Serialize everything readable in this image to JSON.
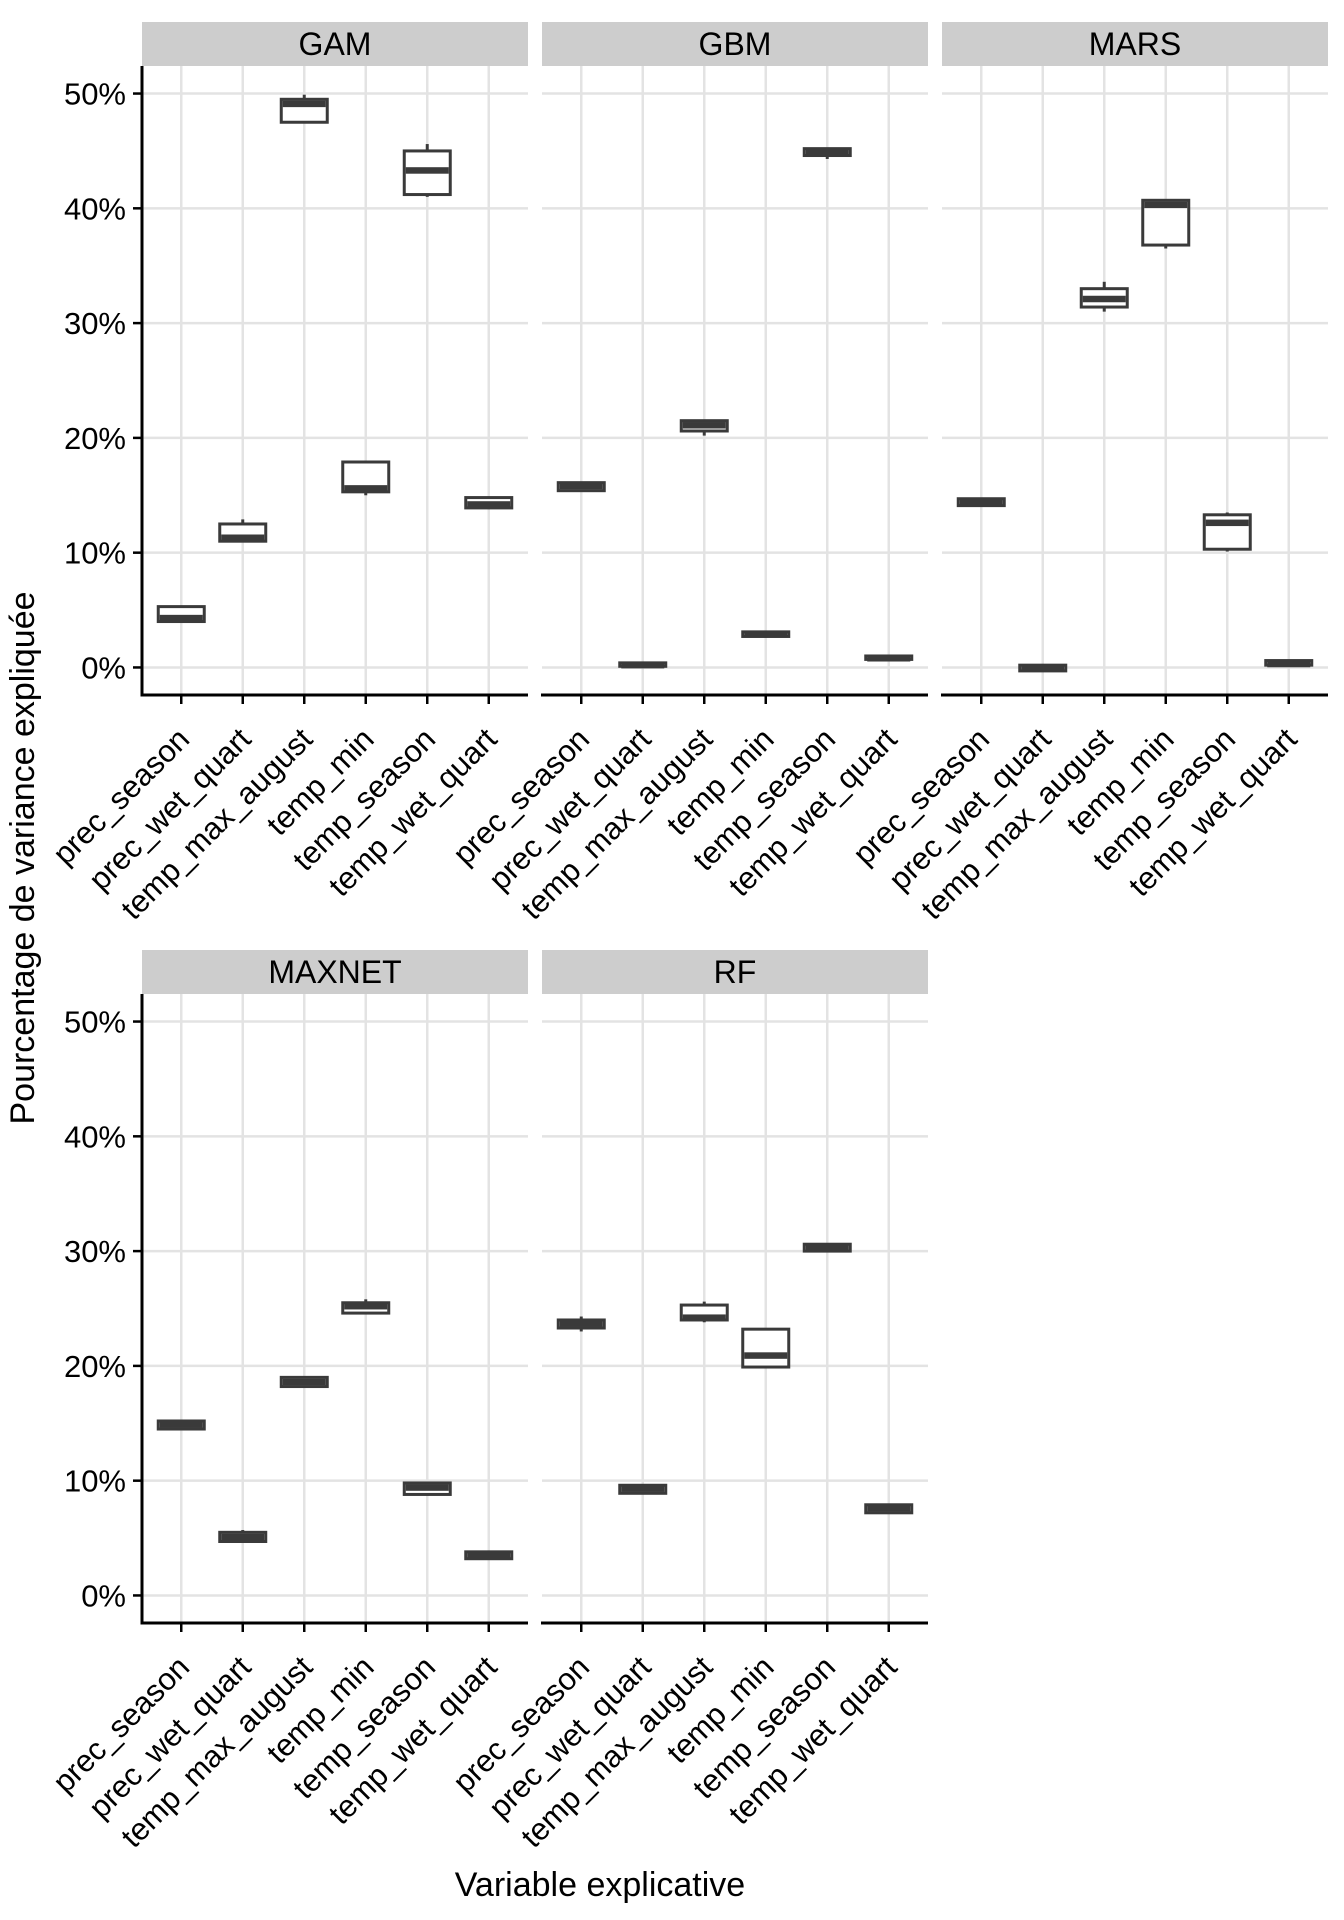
{
  "chart_data": {
    "type": "boxplot",
    "title": "",
    "xlabel": "Variable explicative",
    "ylabel": "Pourcentage de variance expliquée",
    "categories": [
      "prec_season",
      "prec_wet_quart",
      "temp_max_august",
      "temp_min",
      "temp_season",
      "temp_wet_quart"
    ],
    "ytick_labels": [
      "0%",
      "10%",
      "20%",
      "30%",
      "40%",
      "50%"
    ],
    "ytick_values": [
      0,
      10,
      20,
      30,
      40,
      50
    ],
    "ylim": [
      -2.4,
      52.4
    ],
    "grid": true,
    "legend_position": "none",
    "facets": [
      {
        "label": "GAM",
        "row": 0,
        "col": 0,
        "boxes": [
          {
            "category": "prec_season",
            "whisker_low": 3.9,
            "q1": 4.0,
            "median": 4.3,
            "q3": 5.3,
            "whisker_high": 5.4
          },
          {
            "category": "prec_wet_quart",
            "whisker_low": 10.9,
            "q1": 11.0,
            "median": 11.3,
            "q3": 12.5,
            "whisker_high": 12.9
          },
          {
            "category": "temp_max_august",
            "whisker_low": 47.4,
            "q1": 47.5,
            "median": 49.1,
            "q3": 49.5,
            "whisker_high": 49.9
          },
          {
            "category": "temp_min",
            "whisker_low": 15.0,
            "q1": 15.3,
            "median": 15.6,
            "q3": 17.9,
            "whisker_high": 18.0
          },
          {
            "category": "temp_season",
            "whisker_low": 41.0,
            "q1": 41.2,
            "median": 43.3,
            "q3": 45.0,
            "whisker_high": 45.6
          },
          {
            "category": "temp_wet_quart",
            "whisker_low": 13.8,
            "q1": 13.9,
            "median": 14.2,
            "q3": 14.8,
            "whisker_high": 14.9
          }
        ]
      },
      {
        "label": "GBM",
        "row": 0,
        "col": 1,
        "boxes": [
          {
            "category": "prec_season",
            "whisker_low": 15.3,
            "q1": 15.4,
            "median": 15.8,
            "q3": 16.1,
            "whisker_high": 16.2
          },
          {
            "category": "prec_wet_quart",
            "whisker_low": 0.0,
            "q1": 0.1,
            "median": 0.2,
            "q3": 0.4,
            "whisker_high": 0.4
          },
          {
            "category": "temp_max_august",
            "whisker_low": 20.2,
            "q1": 20.6,
            "median": 21.1,
            "q3": 21.5,
            "whisker_high": 21.6
          },
          {
            "category": "temp_min",
            "whisker_low": 2.6,
            "q1": 2.7,
            "median": 2.9,
            "q3": 3.1,
            "whisker_high": 3.2
          },
          {
            "category": "temp_season",
            "whisker_low": 44.3,
            "q1": 44.6,
            "median": 44.9,
            "q3": 45.2,
            "whisker_high": 45.3
          },
          {
            "category": "temp_wet_quart",
            "whisker_low": 0.6,
            "q1": 0.7,
            "median": 0.8,
            "q3": 1.0,
            "whisker_high": 1.0
          }
        ]
      },
      {
        "label": "MARS",
        "row": 0,
        "col": 2,
        "boxes": [
          {
            "category": "prec_season",
            "whisker_low": 14.0,
            "q1": 14.1,
            "median": 14.4,
            "q3": 14.7,
            "whisker_high": 14.7
          },
          {
            "category": "prec_wet_quart",
            "whisker_low": -0.4,
            "q1": -0.3,
            "median": -0.1,
            "q3": 0.2,
            "whisker_high": 0.2
          },
          {
            "category": "temp_max_august",
            "whisker_low": 31.0,
            "q1": 31.4,
            "median": 32.1,
            "q3": 33.0,
            "whisker_high": 33.6
          },
          {
            "category": "temp_min",
            "whisker_low": 36.5,
            "q1": 36.8,
            "median": 40.3,
            "q3": 40.7,
            "whisker_high": 40.8
          },
          {
            "category": "temp_season",
            "whisker_low": 10.1,
            "q1": 10.3,
            "median": 12.6,
            "q3": 13.3,
            "whisker_high": 13.5
          },
          {
            "category": "temp_wet_quart",
            "whisker_low": 0.1,
            "q1": 0.2,
            "median": 0.3,
            "q3": 0.6,
            "whisker_high": 0.6
          }
        ]
      },
      {
        "label": "MAXNET",
        "row": 1,
        "col": 0,
        "boxes": [
          {
            "category": "prec_season",
            "whisker_low": 14.4,
            "q1": 14.5,
            "median": 14.9,
            "q3": 15.2,
            "whisker_high": 15.3
          },
          {
            "category": "prec_wet_quart",
            "whisker_low": 4.6,
            "q1": 4.7,
            "median": 5.1,
            "q3": 5.5,
            "whisker_high": 5.7
          },
          {
            "category": "temp_max_august",
            "whisker_low": 18.1,
            "q1": 18.2,
            "median": 18.6,
            "q3": 19.0,
            "whisker_high": 19.1
          },
          {
            "category": "temp_min",
            "whisker_low": 24.5,
            "q1": 24.6,
            "median": 25.2,
            "q3": 25.5,
            "whisker_high": 25.8
          },
          {
            "category": "temp_season",
            "whisker_low": 8.7,
            "q1": 8.8,
            "median": 9.4,
            "q3": 9.8,
            "whisker_high": 9.9
          },
          {
            "category": "temp_wet_quart",
            "whisker_low": 3.1,
            "q1": 3.2,
            "median": 3.5,
            "q3": 3.8,
            "whisker_high": 3.9
          }
        ]
      },
      {
        "label": "RF",
        "row": 1,
        "col": 1,
        "boxes": [
          {
            "category": "prec_season",
            "whisker_low": 23.0,
            "q1": 23.3,
            "median": 23.7,
            "q3": 24.0,
            "whisker_high": 24.3
          },
          {
            "category": "prec_wet_quart",
            "whisker_low": 8.8,
            "q1": 8.9,
            "median": 9.3,
            "q3": 9.6,
            "whisker_high": 9.7
          },
          {
            "category": "temp_max_august",
            "whisker_low": 23.8,
            "q1": 24.0,
            "median": 24.2,
            "q3": 25.3,
            "whisker_high": 25.6
          },
          {
            "category": "temp_min",
            "whisker_low": 19.8,
            "q1": 19.9,
            "median": 20.9,
            "q3": 23.2,
            "whisker_high": 23.3
          },
          {
            "category": "temp_season",
            "whisker_low": 29.9,
            "q1": 30.0,
            "median": 30.3,
            "q3": 30.6,
            "whisker_high": 30.7
          },
          {
            "category": "temp_wet_quart",
            "whisker_low": 7.1,
            "q1": 7.2,
            "median": 7.6,
            "q3": 7.9,
            "whisker_high": 8.0
          }
        ]
      }
    ]
  },
  "style": {
    "strip_bg": "#cdcdcd",
    "grid_color": "#e3e3e3",
    "box_stroke": "#3a3a3a",
    "box_fill": "#ffffff",
    "axis_color": "#000000",
    "text_color": "#000000"
  }
}
